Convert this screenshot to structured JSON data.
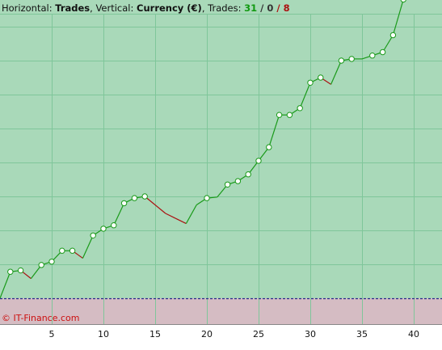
{
  "header": {
    "horizontal_prefix": "Horizontal: ",
    "horizontal_value": "Trades",
    "vertical_prefix": ", Vertical: ",
    "vertical_value": "Currency (€)",
    "trades_prefix": ", Trades: ",
    "trades_win": "31",
    "sep1": " / ",
    "trades_even": "0",
    "sep2": " / ",
    "trades_loss": "8"
  },
  "copyright": "© IT-Finance.com",
  "colors": {
    "profit_area": "#a9d9b9",
    "loss_area": "#d5bcc3",
    "grid": "#7fc69a",
    "up_line": "#1a9a1a",
    "down_line": "#aa1111",
    "marker_fill": "#ffffff",
    "zero_line": "#2a2a8a",
    "axis_bg": "#ffffff"
  },
  "chart_data": {
    "type": "line",
    "xlabel": "Trades",
    "ylabel": "Currency (€)",
    "x_ticks": [
      5,
      10,
      15,
      20,
      25,
      30,
      35,
      40
    ],
    "xlim": [
      0,
      42
    ],
    "ylim": [
      -1,
      11
    ],
    "zero_level": 0,
    "series": [
      {
        "values": [
          0.0,
          0.78,
          0.82,
          0.58,
          0.98,
          1.08,
          1.4,
          1.4,
          1.18,
          1.85,
          2.05,
          2.15,
          2.8,
          2.95,
          3.0,
          2.75,
          2.5,
          2.35,
          2.2,
          2.75,
          2.95,
          2.98,
          3.35,
          3.45,
          3.65,
          4.05,
          4.45,
          5.4,
          5.4,
          5.6,
          6.35,
          6.5,
          6.3,
          7.0,
          7.05,
          7.05,
          7.15,
          7.25,
          7.75,
          8.8
        ],
        "markers": [
          1,
          2,
          4,
          5,
          6,
          7,
          9,
          10,
          11,
          12,
          13,
          14,
          20,
          22,
          23,
          24,
          25,
          26,
          27,
          28,
          29,
          30,
          31,
          33,
          34,
          36,
          37,
          38,
          39
        ]
      }
    ]
  }
}
